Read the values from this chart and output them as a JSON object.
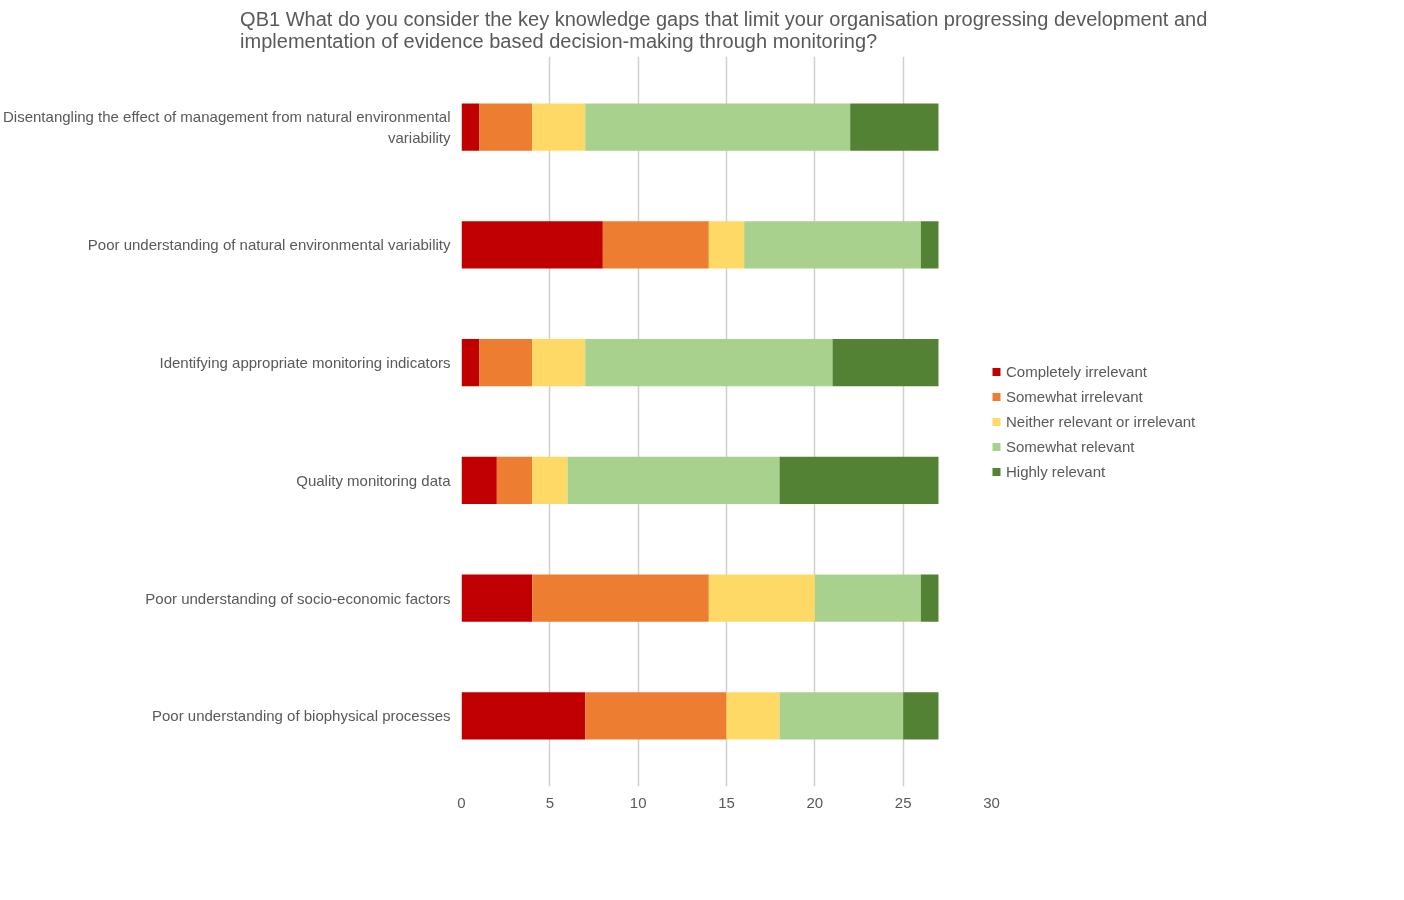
{
  "chart_data": {
    "type": "bar",
    "orientation": "horizontal",
    "stacked": true,
    "title": "QB1 What do you consider the key knowledge gaps that limit your organisation progressing  development and implementation of evidence based decision-making through monitoring?",
    "categories": [
      "Disentangling the effect of management from natural environmental variability",
      "Poor understanding of natural environmental variability",
      "Identifying appropriate monitoring indicators",
      "Quality monitoring data",
      "Poor understanding of socio-economic factors",
      "Poor understanding of biophysical processes"
    ],
    "series": [
      {
        "name": "Completely irrelevant",
        "color": "#c00000",
        "values": [
          1,
          8,
          1,
          2,
          4,
          7
        ]
      },
      {
        "name": "Somewhat irrelevant",
        "color": "#ed7d31",
        "values": [
          3,
          6,
          3,
          2,
          10,
          8
        ]
      },
      {
        "name": "Neither relevant or irrelevant",
        "color": "#ffd966",
        "values": [
          3,
          2,
          3,
          2,
          6,
          3
        ]
      },
      {
        "name": "Somewhat relevant",
        "color": "#a9d18e",
        "values": [
          15,
          10,
          14,
          12,
          6,
          7
        ]
      },
      {
        "name": "Highly relevant",
        "color": "#548235",
        "values": [
          5,
          1,
          6,
          9,
          1,
          2
        ]
      }
    ],
    "xlim": [
      0,
      30
    ],
    "xticks": [
      0,
      5,
      10,
      15,
      20,
      25,
      30
    ],
    "grid": "x",
    "legend": "right"
  }
}
